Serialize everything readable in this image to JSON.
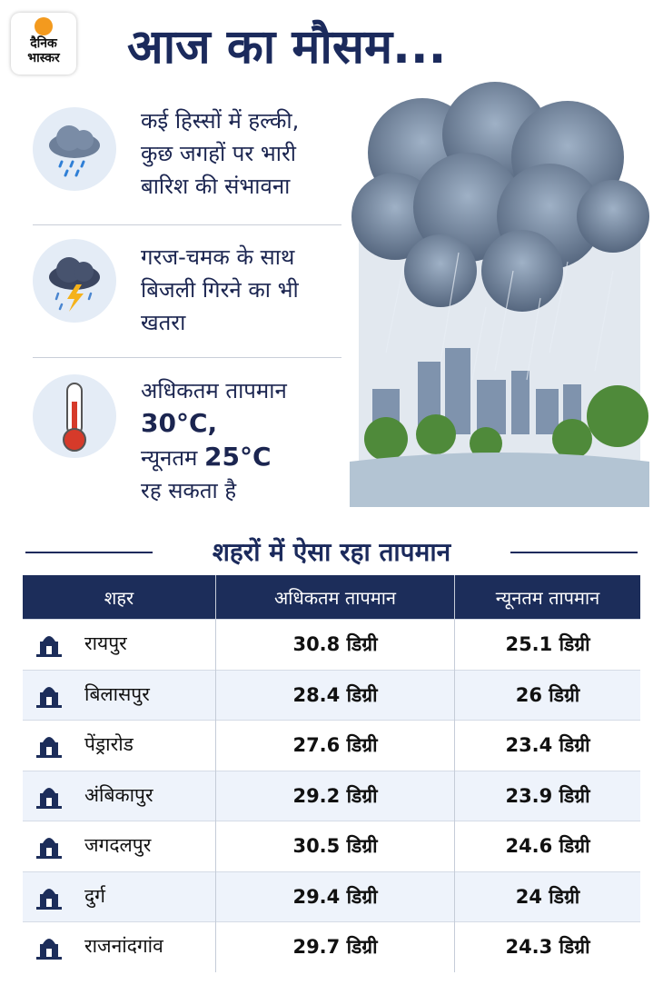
{
  "logo": {
    "line1": "दैनिक",
    "line2": "भास्कर"
  },
  "header": {
    "title": "आज का मौसम..."
  },
  "forecast": [
    {
      "lines": [
        "कई हिस्सों में हल्की,",
        "कुछ जगहों पर भारी",
        "बारिश की संभावना"
      ]
    },
    {
      "lines": [
        "गरज-चमक के साथ",
        "बिजली गिरने का भी",
        "खतरा"
      ]
    },
    {
      "lines": [
        "अधिकतम तापमान",
        "30°C,",
        "न्यूनतम",
        "25°C",
        "रह सकता है"
      ]
    }
  ],
  "table": {
    "title": "शहरों में ऐसा रहा तापमान",
    "headers": [
      "शहर",
      "अधिकतम तापमान",
      "न्यूनतम तापमान"
    ],
    "rows": [
      [
        "रायपुर",
        "30.8 डिग्री",
        "25.1 डिग्री"
      ],
      [
        "बिलासपुर",
        "28.4 डिग्री",
        "26  डिग्री"
      ],
      [
        "पेंड्रारोड",
        "27.6 डिग्री",
        "23.4 डिग्री"
      ],
      [
        "अंबिकापुर",
        "29.2 डिग्री",
        "23.9 डिग्री"
      ],
      [
        "जगदलपुर",
        "30.5 डिग्री",
        "24.6 डिग्री"
      ],
      [
        "दुर्ग",
        "29.4 डिग्री",
        "24  डिग्री"
      ],
      [
        "राजनांदगांव",
        "29.7 डिग्री",
        "24.3 डिग्री"
      ]
    ]
  }
}
